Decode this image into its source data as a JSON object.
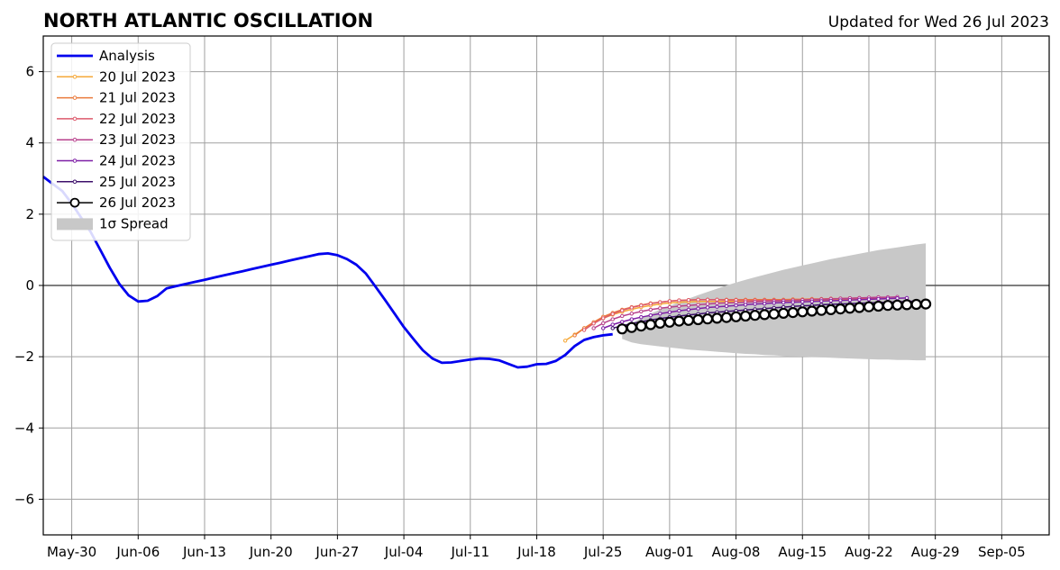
{
  "chart_data": {
    "type": "line",
    "title": "NORTH ATLANTIC OSCILLATION",
    "subtitle": "Updated for Wed 26 Jul 2023",
    "xlabel": "",
    "ylabel": "",
    "x_range": [
      "2023-05-27",
      "2023-09-10"
    ],
    "ylim": [
      -7,
      7
    ],
    "y_ticks": [
      -6,
      -4,
      -2,
      0,
      2,
      4,
      6
    ],
    "y_tick_labels": [
      "−6",
      "−4",
      "−2",
      "0",
      "2",
      "4",
      "6"
    ],
    "x_ticks": [
      "2023-05-30",
      "2023-06-06",
      "2023-06-13",
      "2023-06-20",
      "2023-06-27",
      "2023-07-04",
      "2023-07-11",
      "2023-07-18",
      "2023-07-25",
      "2023-08-01",
      "2023-08-08",
      "2023-08-15",
      "2023-08-22",
      "2023-08-29",
      "2023-09-05"
    ],
    "x_tick_labels": [
      "May-30",
      "Jun-06",
      "Jun-13",
      "Jun-20",
      "Jun-27",
      "Jul-04",
      "Jul-11",
      "Jul-18",
      "Jul-25",
      "Aug-01",
      "Aug-08",
      "Aug-15",
      "Aug-22",
      "Aug-29",
      "Sep-05"
    ],
    "grid": true,
    "legend_position": "upper-left",
    "zero_line": 0,
    "analysis": {
      "name": "Analysis",
      "color": "#0000ee",
      "start_date": "2023-05-27",
      "values": [
        3.05,
        2.85,
        2.65,
        2.3,
        1.9,
        1.5,
        1.0,
        0.5,
        0.05,
        -0.28,
        -0.45,
        -0.43,
        -0.3,
        -0.08,
        -0.02,
        0.04,
        0.1,
        0.16,
        0.22,
        0.28,
        0.34,
        0.4,
        0.46,
        0.52,
        0.58,
        0.64,
        0.7,
        0.76,
        0.82,
        0.88,
        0.9,
        0.85,
        0.74,
        0.58,
        0.33,
        -0.03,
        -0.4,
        -0.78,
        -1.17,
        -1.5,
        -1.82,
        -2.05,
        -2.17,
        -2.16,
        -2.12,
        -2.08,
        -2.05,
        -2.06,
        -2.1,
        -2.2,
        -2.3,
        -2.28,
        -2.21,
        -2.2,
        -2.12,
        -1.95,
        -1.7,
        -1.53,
        -1.45,
        -1.4,
        -1.37
      ]
    },
    "forecasts": [
      {
        "name": "20 Jul 2023",
        "color": "#f5a93a",
        "start_date": "2023-07-21",
        "values": [
          -1.55,
          -1.38,
          -1.2,
          -1.05,
          -0.92,
          -0.82,
          -0.74,
          -0.67,
          -0.61,
          -0.56,
          -0.52,
          -0.49,
          -0.47,
          -0.46,
          -0.45,
          -0.45,
          -0.45,
          -0.45,
          -0.45,
          -0.45,
          -0.45,
          -0.45,
          -0.44,
          -0.44,
          -0.43,
          -0.42,
          -0.41,
          -0.41,
          -0.4,
          -0.39,
          -0.39,
          -0.38,
          -0.38
        ]
      },
      {
        "name": "21 Jul 2023",
        "color": "#ea7a3c",
        "start_date": "2023-07-22",
        "values": [
          -1.4,
          -1.2,
          -1.03,
          -0.88,
          -0.77,
          -0.68,
          -0.61,
          -0.55,
          -0.5,
          -0.47,
          -0.44,
          -0.42,
          -0.41,
          -0.4,
          -0.4,
          -0.4,
          -0.4,
          -0.4,
          -0.4,
          -0.4,
          -0.4,
          -0.4,
          -0.4,
          -0.39,
          -0.39,
          -0.38,
          -0.38,
          -0.37,
          -0.37,
          -0.36,
          -0.36,
          -0.35,
          -0.35
        ]
      },
      {
        "name": "22 Jul 2023",
        "color": "#dd5a6c",
        "start_date": "2023-07-23",
        "values": [
          -1.25,
          -1.07,
          -0.92,
          -0.8,
          -0.7,
          -0.62,
          -0.56,
          -0.51,
          -0.47,
          -0.44,
          -0.42,
          -0.41,
          -0.4,
          -0.4,
          -0.4,
          -0.41,
          -0.41,
          -0.42,
          -0.42,
          -0.42,
          -0.42,
          -0.42,
          -0.42,
          -0.41,
          -0.4,
          -0.39,
          -0.38,
          -0.37,
          -0.36,
          -0.35,
          -0.35,
          -0.34,
          -0.34
        ]
      },
      {
        "name": "23 Jul 2023",
        "color": "#b8408c",
        "start_date": "2023-07-24",
        "values": [
          -1.2,
          -1.06,
          -0.95,
          -0.86,
          -0.79,
          -0.73,
          -0.68,
          -0.64,
          -0.61,
          -0.58,
          -0.56,
          -0.54,
          -0.52,
          -0.5,
          -0.49,
          -0.48,
          -0.47,
          -0.46,
          -0.45,
          -0.44,
          -0.43,
          -0.42,
          -0.41,
          -0.4,
          -0.39,
          -0.38,
          -0.37,
          -0.36,
          -0.35,
          -0.34,
          -0.33,
          -0.33,
          -0.32
        ]
      },
      {
        "name": "24 Jul 2023",
        "color": "#7e1fa6",
        "start_date": "2023-07-25",
        "values": [
          -1.2,
          -1.1,
          -1.02,
          -0.95,
          -0.89,
          -0.84,
          -0.79,
          -0.75,
          -0.71,
          -0.68,
          -0.65,
          -0.62,
          -0.6,
          -0.58,
          -0.56,
          -0.54,
          -0.52,
          -0.51,
          -0.49,
          -0.48,
          -0.47,
          -0.46,
          -0.45,
          -0.44,
          -0.43,
          -0.42,
          -0.41,
          -0.4,
          -0.39,
          -0.38,
          -0.37,
          -0.36,
          -0.35
        ]
      },
      {
        "name": "25 Jul 2023",
        "color": "#3d0f6b",
        "start_date": "2023-07-26",
        "values": [
          -1.2,
          -1.13,
          -1.07,
          -1.02,
          -0.97,
          -0.93,
          -0.89,
          -0.86,
          -0.83,
          -0.8,
          -0.77,
          -0.75,
          -0.73,
          -0.71,
          -0.69,
          -0.67,
          -0.65,
          -0.63,
          -0.61,
          -0.59,
          -0.57,
          -0.56,
          -0.54,
          -0.53,
          -0.52,
          -0.51,
          -0.5,
          -0.49,
          -0.48,
          -0.47,
          -0.46,
          -0.45,
          -0.44
        ]
      },
      {
        "name": "26 Jul 2023",
        "color": "#000000",
        "start_date": "2023-07-27",
        "values": [
          -1.22,
          -1.18,
          -1.14,
          -1.1,
          -1.06,
          -1.03,
          -1.0,
          -0.98,
          -0.96,
          -0.94,
          -0.92,
          -0.9,
          -0.88,
          -0.86,
          -0.84,
          -0.82,
          -0.8,
          -0.78,
          -0.76,
          -0.74,
          -0.72,
          -0.7,
          -0.68,
          -0.66,
          -0.64,
          -0.62,
          -0.6,
          -0.58,
          -0.56,
          -0.55,
          -0.54,
          -0.53,
          -0.52
        ]
      }
    ],
    "spread": {
      "name": "1σ Spread",
      "color": "#c8c8c8",
      "start_date": "2023-07-27",
      "upper": [
        -1.4,
        -1.06,
        -0.92,
        -0.79,
        -0.68,
        -0.57,
        -0.47,
        -0.37,
        -0.27,
        -0.18,
        -0.09,
        0.0,
        0.08,
        0.16,
        0.23,
        0.3,
        0.37,
        0.44,
        0.5,
        0.56,
        0.62,
        0.68,
        0.74,
        0.79,
        0.84,
        0.89,
        0.94,
        0.99,
        1.03,
        1.07,
        1.11,
        1.15,
        1.18
      ],
      "lower": [
        -1.5,
        -1.6,
        -1.65,
        -1.68,
        -1.71,
        -1.74,
        -1.77,
        -1.8,
        -1.82,
        -1.84,
        -1.86,
        -1.88,
        -1.9,
        -1.92,
        -1.93,
        -1.95,
        -1.96,
        -1.98,
        -1.99,
        -2.0,
        -2.01,
        -2.02,
        -2.03,
        -2.04,
        -2.05,
        -2.06,
        -2.07,
        -2.08,
        -2.08,
        -2.09,
        -2.09,
        -2.1,
        -2.1
      ]
    }
  }
}
